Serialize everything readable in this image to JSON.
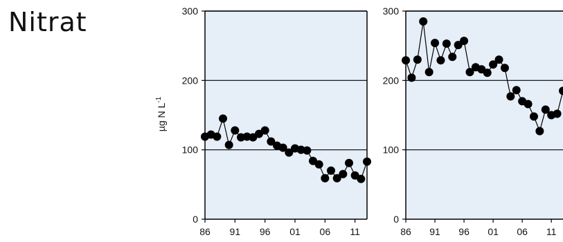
{
  "page": {
    "title": "Nitrat"
  },
  "colors": {
    "plot_bg": "#e6eef8",
    "axis": "#000000",
    "series": "#000000",
    "text": "#111111"
  },
  "chart_data": [
    {
      "type": "line",
      "title": "",
      "xlabel": "",
      "ylabel": "µg N L",
      "ylabel_superscript": "-1",
      "ylim": [
        0,
        300
      ],
      "yticks": [
        0,
        100,
        200,
        300
      ],
      "xlim": [
        1986,
        2013
      ],
      "xticks": [
        1986,
        1991,
        1996,
        2001,
        2006,
        2011
      ],
      "xtick_labels": [
        "86",
        "91",
        "96",
        "01",
        "06",
        "11"
      ],
      "grid": "horizontal",
      "series": [
        {
          "x": [
            1986,
            1987,
            1988,
            1989,
            1990,
            1991,
            1992,
            1993,
            1994,
            1995,
            1996,
            1997,
            1998,
            1999,
            2000,
            2001,
            2002,
            2003,
            2004,
            2005,
            2006,
            2007,
            2008,
            2009,
            2010,
            2011,
            2012,
            2013
          ],
          "values": [
            119,
            122,
            119,
            145,
            107,
            128,
            118,
            119,
            118,
            123,
            128,
            112,
            106,
            103,
            96,
            102,
            100,
            99,
            84,
            79,
            59,
            70,
            59,
            65,
            81,
            63,
            58,
            83
          ]
        }
      ]
    },
    {
      "type": "line",
      "title": "",
      "xlabel": "",
      "ylabel": "",
      "ylim": [
        0,
        300
      ],
      "yticks": [
        0,
        100,
        200,
        300
      ],
      "xlim": [
        1986,
        2013
      ],
      "xticks": [
        1986,
        1991,
        1996,
        2001,
        2006,
        2011
      ],
      "xtick_labels": [
        "86",
        "91",
        "96",
        "01",
        "06",
        "11"
      ],
      "grid": "horizontal",
      "series": [
        {
          "x": [
            1986,
            1987,
            1988,
            1989,
            1990,
            1991,
            1992,
            1993,
            1994,
            1995,
            1996,
            1997,
            1998,
            1999,
            2000,
            2001,
            2002,
            2003,
            2004,
            2005,
            2006,
            2007,
            2008,
            2009,
            2010,
            2011,
            2012,
            2013
          ],
          "values": [
            229,
            204,
            230,
            285,
            212,
            254,
            229,
            253,
            234,
            251,
            257,
            212,
            219,
            216,
            211,
            223,
            230,
            218,
            177,
            186,
            170,
            166,
            148,
            127,
            158,
            150,
            152,
            185
          ]
        }
      ]
    }
  ]
}
